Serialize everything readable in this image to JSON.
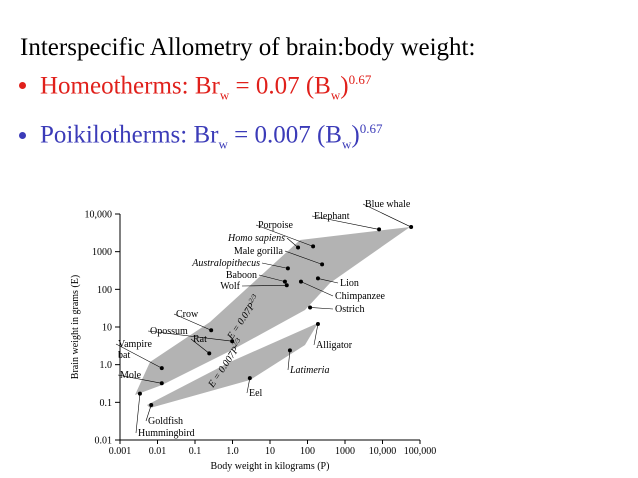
{
  "slide": {
    "title": "Interspecific Allometry of brain:body weight:",
    "bullets": [
      {
        "color": "#e0201b",
        "parts": [
          {
            "t": "Homeotherms: Br"
          },
          {
            "sub": "w"
          },
          {
            "t": " = 0.07 (B"
          },
          {
            "sub": "w"
          },
          {
            "t": ")"
          },
          {
            "sup": "0.67"
          }
        ]
      },
      {
        "color": "#3b3bb8",
        "parts": [
          {
            "t": "Poikilotherms: Br"
          },
          {
            "sub": "w"
          },
          {
            "t": " = 0.007 (B"
          },
          {
            "sub": "w"
          },
          {
            "t": ")"
          },
          {
            "sup": "0.67"
          }
        ]
      }
    ]
  },
  "chart_data": {
    "type": "scatter",
    "x_label": "Body weight in kilograms (P)",
    "y_label": "Brain weight in grams (E)",
    "log_x": true,
    "log_y": true,
    "color": "#000000",
    "xlim": [
      0.001,
      100000
    ],
    "xticks": [
      0.001,
      0.01,
      0.1,
      {
        "value": 1,
        "label": "1.0"
      },
      10,
      100,
      1000,
      {
        "value": 10000,
        "label": "10,000"
      },
      {
        "value": 100000,
        "label": "100,000"
      }
    ],
    "ylim": [
      0.01,
      10000
    ],
    "yticks": [
      0.01,
      0.1,
      {
        "value": 1,
        "label": "1.0"
      },
      10,
      100,
      1000,
      {
        "value": 10000,
        "label": "10,000"
      }
    ],
    "labels": [
      "Blue whale",
      "Elephant",
      "Porpoise",
      "Homo sapiens",
      "Male gorilla",
      "Australopithecus",
      "Baboon",
      "Wolf",
      "Lion",
      "Chimpanzee",
      "Ostrich",
      "Crow",
      "Opossum",
      "Rat",
      "Vampire bat",
      "Mole",
      "Alligator",
      "Latimeria",
      "Eel",
      "Goldfish",
      "Hummingbird"
    ],
    "x": [
      58000,
      8100,
      141,
      56,
      245,
      30,
      25,
      28,
      190,
      67,
      117,
      0.27,
      0.98,
      0.24,
      0.013,
      0.013,
      190,
      34,
      2.9,
      0.0068,
      0.0034
    ],
    "values": [
      4500,
      3900,
      1380,
      1290,
      460,
      360,
      160,
      128,
      195,
      160,
      33,
      8.2,
      4.2,
      2.0,
      0.81,
      0.32,
      12,
      2.4,
      0.44,
      0.085,
      0.17
    ],
    "annotations": [
      {
        "text": "E = 0.07P",
        "sup": "2/3"
      },
      {
        "text": "E = 0.007P",
        "sup": "2/3"
      }
    ]
  }
}
